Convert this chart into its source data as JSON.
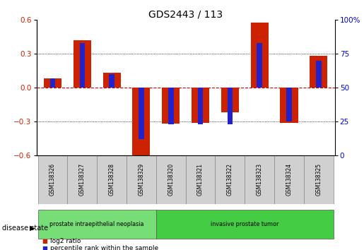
{
  "title": "GDS2443 / 113",
  "samples": [
    "GSM138326",
    "GSM138327",
    "GSM138328",
    "GSM138329",
    "GSM138320",
    "GSM138321",
    "GSM138322",
    "GSM138323",
    "GSM138324",
    "GSM138325"
  ],
  "log2_ratio": [
    0.08,
    0.42,
    0.13,
    -0.62,
    -0.32,
    -0.31,
    -0.22,
    0.58,
    -0.31,
    0.28
  ],
  "percentile_rank": [
    57,
    83,
    60,
    12,
    23,
    23,
    23,
    83,
    25,
    70
  ],
  "ylim_left": [
    -0.6,
    0.6
  ],
  "ylim_right": [
    0,
    100
  ],
  "yticks_left": [
    -0.6,
    -0.3,
    0.0,
    0.3,
    0.6
  ],
  "yticks_right": [
    0,
    25,
    50,
    75,
    100
  ],
  "bar_color_red": "#cc2200",
  "bar_color_blue": "#2222cc",
  "grid_color": "#000000",
  "zero_line_color": "#cc0000",
  "disease_groups": [
    {
      "label": "prostate intraepithelial neoplasia",
      "n_samples": 4,
      "color": "#77dd77"
    },
    {
      "label": "invasive prostate tumor",
      "n_samples": 6,
      "color": "#44cc44"
    }
  ],
  "legend_items": [
    {
      "label": "log2 ratio",
      "color": "#cc2200"
    },
    {
      "label": "percentile rank within the sample",
      "color": "#2222cc"
    }
  ],
  "disease_state_label": "disease state",
  "background_color": "#ffffff",
  "tick_label_color_left": "#cc2200",
  "tick_label_color_right": "#0000cc",
  "red_bar_width": 0.6,
  "blue_bar_width": 0.18
}
